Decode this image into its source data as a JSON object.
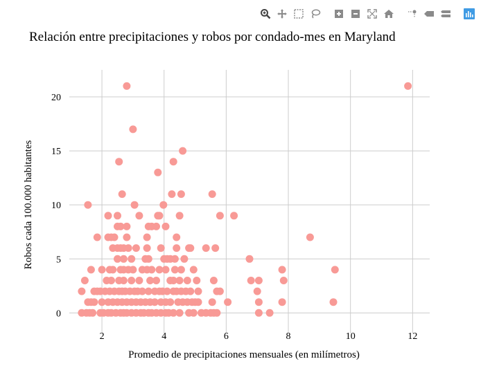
{
  "modebar": {
    "buttons": [
      {
        "name": "zoom-icon",
        "active": true
      },
      {
        "name": "pan-icon"
      },
      {
        "name": "box-select-icon"
      },
      {
        "name": "lasso-select-icon"
      },
      {
        "name": "zoom-in-icon"
      },
      {
        "name": "zoom-out-icon"
      },
      {
        "name": "autoscale-icon"
      },
      {
        "name": "reset-axes-icon"
      },
      {
        "name": "spike-lines-icon"
      },
      {
        "name": "hover-closest-icon"
      },
      {
        "name": "hover-compare-icon"
      },
      {
        "name": "plotly-logo-icon"
      }
    ]
  },
  "colors": {
    "marker": "#f89a96",
    "grid": "#cccccc",
    "text": "#000000",
    "modebar_icon": "#8a8a8a",
    "logo": "#3f9be4"
  },
  "chart_data": {
    "type": "scatter",
    "title": "Relación entre precipitaciones y robos por condado-mes en Maryland",
    "xlabel": "Promedio de precipitaciones mensuales (en milímetros)",
    "ylabel": "Robos cada 100.000 habitantes",
    "xlim": [
      0.95,
      12.55
    ],
    "ylim": [
      -1.9,
      22.5
    ],
    "xticks": [
      2,
      4,
      6,
      8,
      10,
      12
    ],
    "yticks": [
      0,
      5,
      10,
      15,
      20
    ],
    "grid": true,
    "legend": "none",
    "points": [
      [
        2.8,
        21
      ],
      [
        11.85,
        21
      ],
      [
        3.0,
        17
      ],
      [
        4.6,
        15
      ],
      [
        2.55,
        14
      ],
      [
        4.3,
        14
      ],
      [
        3.8,
        13
      ],
      [
        2.65,
        11
      ],
      [
        4.25,
        11
      ],
      [
        4.55,
        11
      ],
      [
        5.55,
        11
      ],
      [
        1.55,
        10
      ],
      [
        3.05,
        10
      ],
      [
        3.98,
        10
      ],
      [
        2.2,
        9
      ],
      [
        2.5,
        9
      ],
      [
        3.2,
        9
      ],
      [
        3.8,
        9
      ],
      [
        3.85,
        9
      ],
      [
        4.5,
        9
      ],
      [
        5.8,
        9
      ],
      [
        6.25,
        9
      ],
      [
        2.5,
        8
      ],
      [
        2.6,
        8
      ],
      [
        2.8,
        8
      ],
      [
        3.5,
        8
      ],
      [
        3.6,
        8
      ],
      [
        3.75,
        8
      ],
      [
        4.05,
        8
      ],
      [
        1.85,
        7
      ],
      [
        2.2,
        7
      ],
      [
        2.3,
        7
      ],
      [
        2.4,
        7
      ],
      [
        2.8,
        7
      ],
      [
        3.45,
        7
      ],
      [
        4.4,
        7
      ],
      [
        8.7,
        7
      ],
      [
        2.35,
        6
      ],
      [
        2.5,
        6
      ],
      [
        2.6,
        6
      ],
      [
        2.7,
        6
      ],
      [
        2.85,
        6
      ],
      [
        3.1,
        6
      ],
      [
        3.45,
        6
      ],
      [
        3.9,
        6
      ],
      [
        4.4,
        6
      ],
      [
        4.8,
        6
      ],
      [
        4.85,
        6
      ],
      [
        5.35,
        6
      ],
      [
        5.65,
        6
      ],
      [
        2.5,
        5
      ],
      [
        2.7,
        5
      ],
      [
        2.95,
        5
      ],
      [
        3.4,
        5
      ],
      [
        3.5,
        5
      ],
      [
        4.0,
        5
      ],
      [
        4.1,
        5
      ],
      [
        4.2,
        5
      ],
      [
        4.35,
        5
      ],
      [
        4.65,
        5
      ],
      [
        6.75,
        5
      ],
      [
        1.65,
        4
      ],
      [
        2.0,
        4
      ],
      [
        2.25,
        4
      ],
      [
        2.35,
        4
      ],
      [
        2.6,
        4
      ],
      [
        2.7,
        4
      ],
      [
        2.85,
        4
      ],
      [
        3.0,
        4
      ],
      [
        3.3,
        4
      ],
      [
        3.45,
        4
      ],
      [
        3.6,
        4
      ],
      [
        3.85,
        4
      ],
      [
        4.05,
        4
      ],
      [
        4.35,
        4
      ],
      [
        4.55,
        4
      ],
      [
        4.95,
        4
      ],
      [
        7.8,
        4
      ],
      [
        9.5,
        4
      ],
      [
        1.45,
        3
      ],
      [
        2.15,
        3
      ],
      [
        2.3,
        3
      ],
      [
        2.55,
        3
      ],
      [
        2.7,
        3
      ],
      [
        2.95,
        3
      ],
      [
        3.2,
        3
      ],
      [
        3.55,
        3
      ],
      [
        3.75,
        3
      ],
      [
        4.2,
        3
      ],
      [
        4.3,
        3
      ],
      [
        4.5,
        3
      ],
      [
        4.75,
        3
      ],
      [
        5.05,
        3
      ],
      [
        5.6,
        3
      ],
      [
        6.8,
        3
      ],
      [
        7.05,
        3
      ],
      [
        7.85,
        3
      ],
      [
        1.35,
        2
      ],
      [
        1.75,
        2
      ],
      [
        1.85,
        2
      ],
      [
        1.95,
        2
      ],
      [
        2.1,
        2
      ],
      [
        2.25,
        2
      ],
      [
        2.4,
        2
      ],
      [
        2.55,
        2
      ],
      [
        2.65,
        2
      ],
      [
        2.75,
        2
      ],
      [
        2.9,
        2
      ],
      [
        3.05,
        2
      ],
      [
        3.15,
        2
      ],
      [
        3.3,
        2
      ],
      [
        3.5,
        2
      ],
      [
        3.7,
        2
      ],
      [
        3.85,
        2
      ],
      [
        3.95,
        2
      ],
      [
        4.1,
        2
      ],
      [
        4.3,
        2
      ],
      [
        4.4,
        2
      ],
      [
        4.55,
        2
      ],
      [
        4.7,
        2
      ],
      [
        4.85,
        2
      ],
      [
        5.1,
        2
      ],
      [
        5.7,
        2
      ],
      [
        5.8,
        2
      ],
      [
        7.0,
        2
      ],
      [
        1.55,
        1
      ],
      [
        1.65,
        1
      ],
      [
        1.75,
        1
      ],
      [
        2.0,
        1
      ],
      [
        2.2,
        1
      ],
      [
        2.35,
        1
      ],
      [
        2.5,
        1
      ],
      [
        2.65,
        1
      ],
      [
        2.8,
        1
      ],
      [
        2.95,
        1
      ],
      [
        3.1,
        1
      ],
      [
        3.25,
        1
      ],
      [
        3.4,
        1
      ],
      [
        3.55,
        1
      ],
      [
        3.7,
        1
      ],
      [
        3.9,
        1
      ],
      [
        4.05,
        1
      ],
      [
        4.2,
        1
      ],
      [
        4.45,
        1
      ],
      [
        4.6,
        1
      ],
      [
        4.75,
        1
      ],
      [
        4.9,
        1
      ],
      [
        5.0,
        1
      ],
      [
        5.1,
        1
      ],
      [
        5.55,
        1
      ],
      [
        6.05,
        1
      ],
      [
        7.05,
        1
      ],
      [
        7.8,
        1
      ],
      [
        9.45,
        1
      ],
      [
        1.35,
        0
      ],
      [
        1.5,
        0
      ],
      [
        1.6,
        0
      ],
      [
        1.7,
        0
      ],
      [
        1.95,
        0
      ],
      [
        2.05,
        0
      ],
      [
        2.2,
        0
      ],
      [
        2.3,
        0
      ],
      [
        2.45,
        0
      ],
      [
        2.6,
        0
      ],
      [
        2.7,
        0
      ],
      [
        2.8,
        0
      ],
      [
        2.95,
        0
      ],
      [
        3.1,
        0
      ],
      [
        3.25,
        0
      ],
      [
        3.35,
        0
      ],
      [
        3.5,
        0
      ],
      [
        3.6,
        0
      ],
      [
        3.75,
        0
      ],
      [
        3.9,
        0
      ],
      [
        4.05,
        0
      ],
      [
        4.15,
        0
      ],
      [
        4.3,
        0
      ],
      [
        4.5,
        0
      ],
      [
        4.8,
        0
      ],
      [
        4.95,
        0
      ],
      [
        5.2,
        0
      ],
      [
        5.35,
        0
      ],
      [
        5.5,
        0
      ],
      [
        5.6,
        0
      ],
      [
        5.7,
        0
      ],
      [
        7.05,
        0
      ],
      [
        7.4,
        0
      ]
    ]
  }
}
